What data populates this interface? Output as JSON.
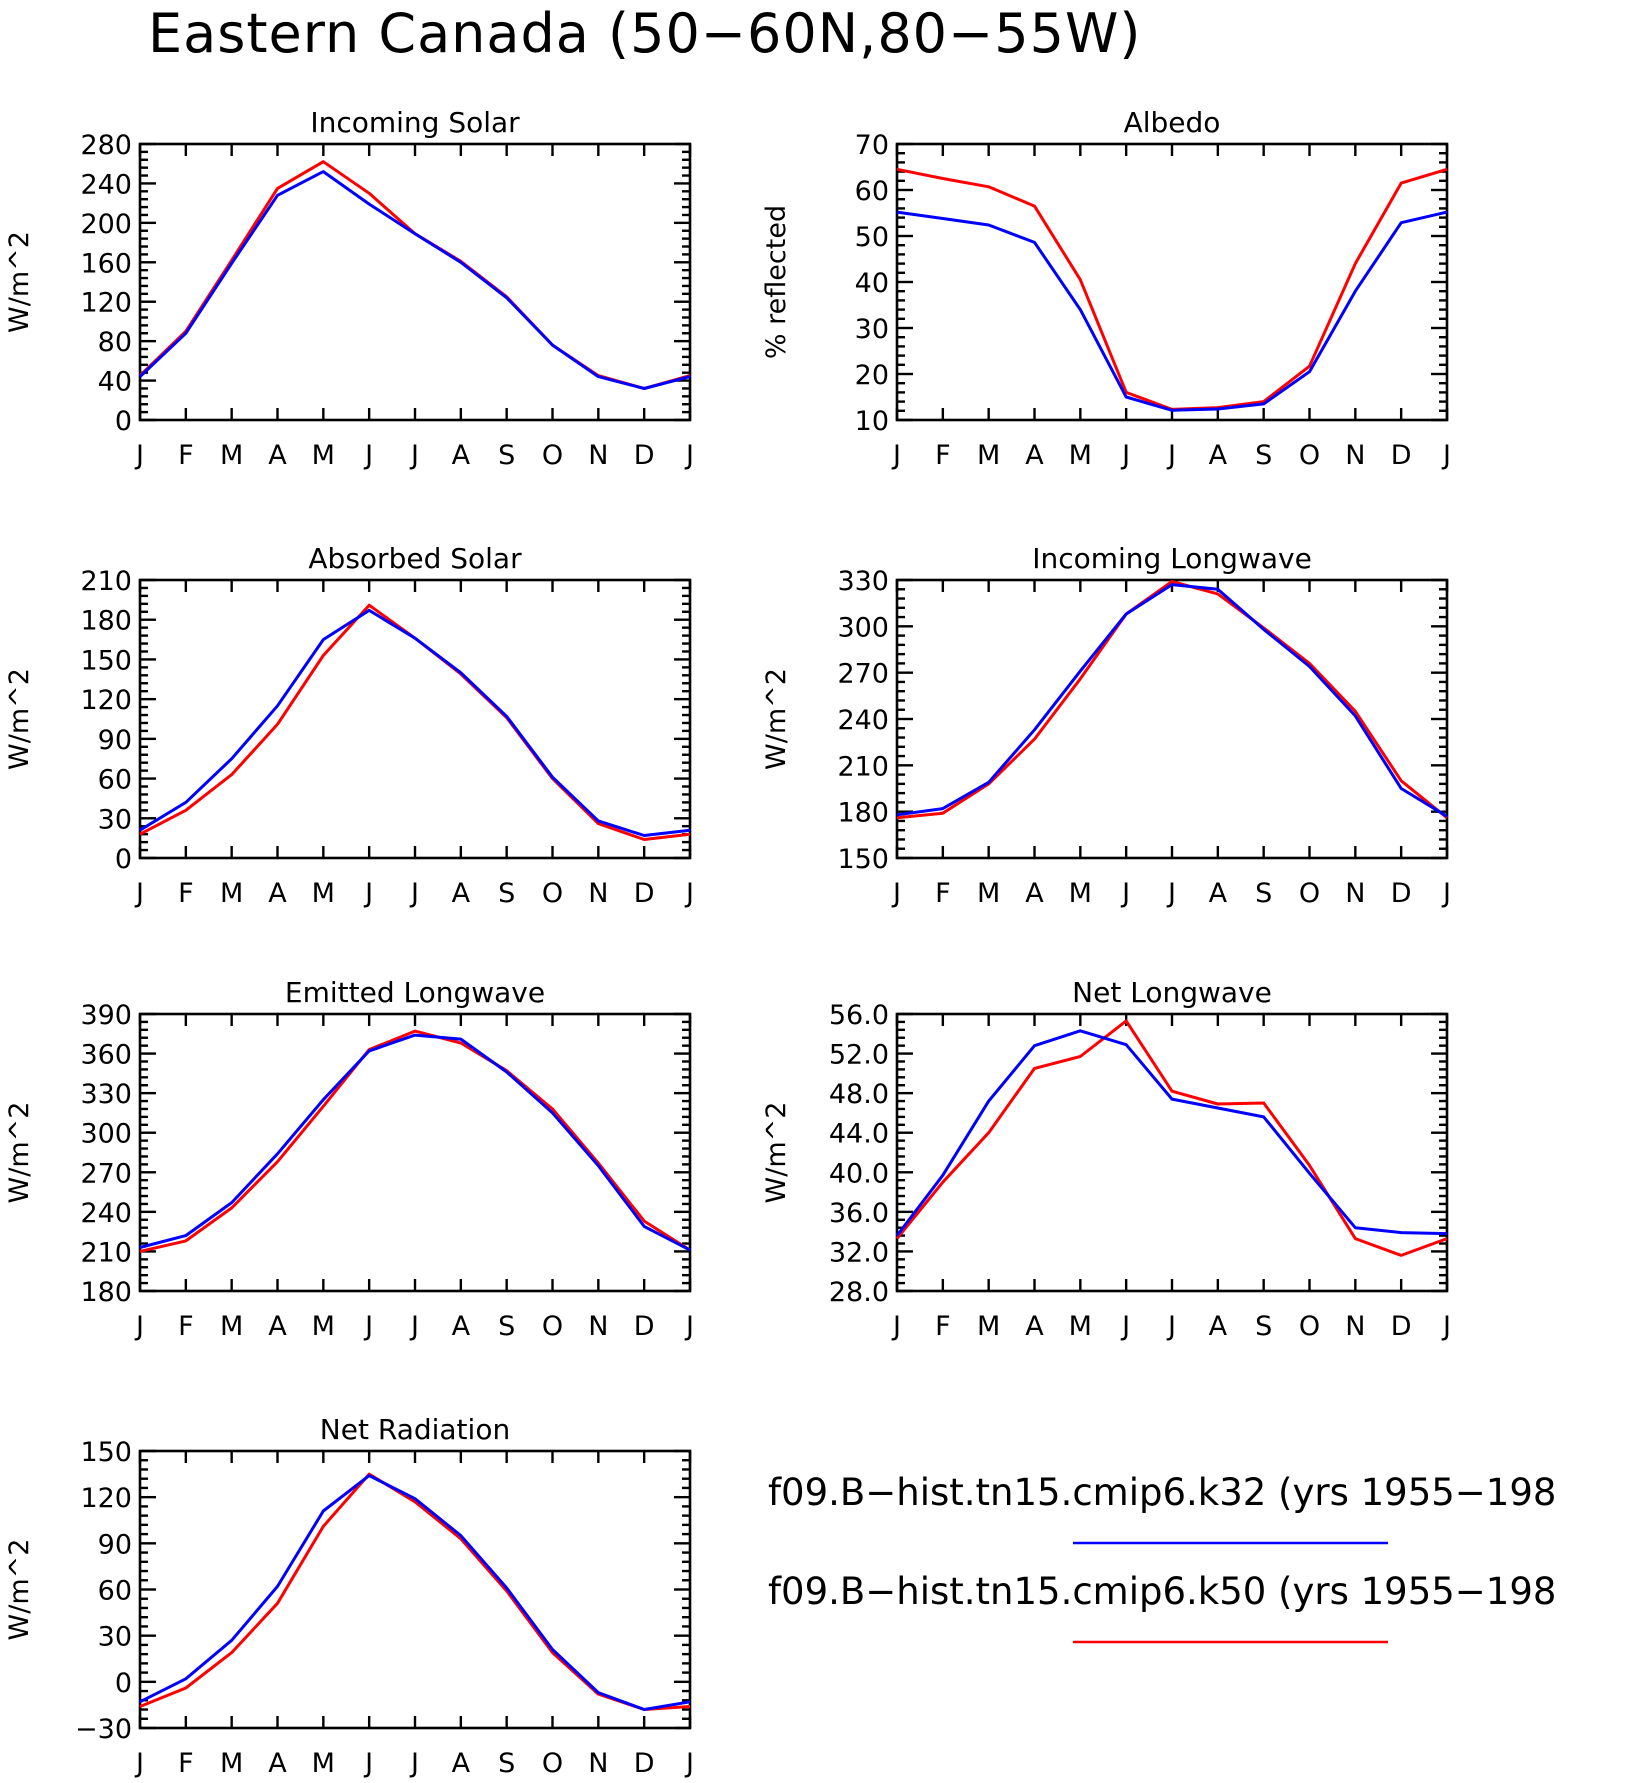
{
  "figure": {
    "title": "Eastern Canada (50−60N,80−55W)"
  },
  "legend": {
    "entries": [
      {
        "label": "f09.B−hist.tn15.cmip6.k32 (yrs 1955−198",
        "color": "#0000ff"
      },
      {
        "label": "f09.B−hist.tn15.cmip6.k50 (yrs 1955−198",
        "color": "#ff0000"
      }
    ]
  },
  "chart_data": [
    {
      "type": "line",
      "title": "Incoming Solar",
      "ylabel": "W/m^2",
      "xlabel": "",
      "categories": [
        "J",
        "F",
        "M",
        "A",
        "M",
        "J",
        "J",
        "A",
        "S",
        "O",
        "N",
        "D",
        "J"
      ],
      "ylim": [
        0,
        280
      ],
      "yticks": [
        0,
        40,
        80,
        120,
        160,
        200,
        240,
        280
      ],
      "ytick_labels": [
        "0",
        "40",
        "80",
        "120",
        "160",
        "200",
        "240",
        "280"
      ],
      "grid": false,
      "series": [
        {
          "color": "#ff0000",
          "values": [
            45,
            90,
            162,
            235,
            262,
            230,
            189,
            161,
            125,
            76,
            45,
            32,
            45
          ]
        },
        {
          "color": "#0000ff",
          "values": [
            44,
            88,
            159,
            228,
            252,
            219,
            189,
            160,
            124,
            76,
            44,
            32,
            44
          ]
        }
      ]
    },
    {
      "type": "line",
      "title": "Albedo",
      "ylabel": "% reflected",
      "xlabel": "",
      "categories": [
        "J",
        "F",
        "M",
        "A",
        "M",
        "J",
        "J",
        "A",
        "S",
        "O",
        "N",
        "D",
        "J"
      ],
      "ylim": [
        10,
        70
      ],
      "yticks": [
        10,
        20,
        30,
        40,
        50,
        60,
        70
      ],
      "ytick_labels": [
        "10",
        "20",
        "30",
        "40",
        "50",
        "60",
        "70"
      ],
      "grid": false,
      "series": [
        {
          "color": "#ff0000",
          "values": [
            64.5,
            62.5,
            60.7,
            56.5,
            40.5,
            16.0,
            12.3,
            12.7,
            14.0,
            21.7,
            44.0,
            61.5,
            64.5
          ]
        },
        {
          "color": "#0000ff",
          "values": [
            55.2,
            53.8,
            52.4,
            48.6,
            34.0,
            15.0,
            12.1,
            12.4,
            13.5,
            20.5,
            38.0,
            52.9,
            55.2
          ]
        }
      ]
    },
    {
      "type": "line",
      "title": "Absorbed Solar",
      "ylabel": "W/m^2",
      "xlabel": "",
      "categories": [
        "J",
        "F",
        "M",
        "A",
        "M",
        "J",
        "J",
        "A",
        "S",
        "O",
        "N",
        "D",
        "J"
      ],
      "ylim": [
        0,
        210
      ],
      "yticks": [
        0,
        30,
        60,
        90,
        120,
        150,
        180,
        210
      ],
      "ytick_labels": [
        "0",
        "30",
        "60",
        "90",
        "120",
        "150",
        "180",
        "210"
      ],
      "grid": false,
      "series": [
        {
          "color": "#ff0000",
          "values": [
            18,
            36,
            63,
            101,
            153,
            191,
            166,
            139,
            106,
            60,
            26,
            14,
            18
          ]
        },
        {
          "color": "#0000ff",
          "values": [
            21,
            42,
            75,
            115,
            165,
            187,
            166,
            140,
            107,
            61,
            28,
            17,
            21
          ]
        }
      ]
    },
    {
      "type": "line",
      "title": "Incoming Longwave",
      "ylabel": "W/m^2",
      "xlabel": "",
      "categories": [
        "J",
        "F",
        "M",
        "A",
        "M",
        "J",
        "J",
        "A",
        "S",
        "O",
        "N",
        "D",
        "J"
      ],
      "ylim": [
        150,
        330
      ],
      "yticks": [
        150,
        180,
        210,
        240,
        270,
        300,
        330
      ],
      "ytick_labels": [
        "150",
        "180",
        "210",
        "240",
        "270",
        "300",
        "330"
      ],
      "grid": false,
      "series": [
        {
          "color": "#ff0000",
          "values": [
            176,
            179,
            198,
            227,
            266,
            308,
            329,
            321,
            299,
            276,
            245,
            200,
            176
          ]
        },
        {
          "color": "#0000ff",
          "values": [
            178,
            182,
            199,
            233,
            271,
            308,
            327,
            324,
            298,
            274,
            242,
            195,
            177
          ]
        }
      ]
    },
    {
      "type": "line",
      "title": "Emitted Longwave",
      "ylabel": "W/m^2",
      "xlabel": "",
      "categories": [
        "J",
        "F",
        "M",
        "A",
        "M",
        "J",
        "J",
        "A",
        "S",
        "O",
        "N",
        "D",
        "J"
      ],
      "ylim": [
        180,
        390
      ],
      "yticks": [
        180,
        210,
        240,
        270,
        300,
        330,
        360,
        390
      ],
      "ytick_labels": [
        "180",
        "210",
        "240",
        "270",
        "300",
        "330",
        "360",
        "390"
      ],
      "grid": false,
      "series": [
        {
          "color": "#ff0000",
          "values": [
            210,
            218,
            243,
            278,
            320,
            363,
            377,
            368,
            347,
            318,
            277,
            233,
            211
          ]
        },
        {
          "color": "#0000ff",
          "values": [
            213,
            222,
            247,
            284,
            325,
            362,
            374,
            371,
            346,
            315,
            275,
            229,
            211
          ]
        }
      ]
    },
    {
      "type": "line",
      "title": "Net Longwave",
      "ylabel": "W/m^2",
      "xlabel": "",
      "categories": [
        "J",
        "F",
        "M",
        "A",
        "M",
        "J",
        "J",
        "A",
        "S",
        "O",
        "N",
        "D",
        "J"
      ],
      "ylim": [
        28.0,
        56.0
      ],
      "yticks": [
        28.0,
        32.0,
        36.0,
        40.0,
        44.0,
        48.0,
        52.0,
        56.0
      ],
      "ytick_labels": [
        "28.0",
        "32.0",
        "36.0",
        "40.0",
        "44.0",
        "48.0",
        "52.0",
        "56.0"
      ],
      "grid": false,
      "series": [
        {
          "color": "#ff0000",
          "values": [
            33.3,
            39.0,
            44.0,
            50.5,
            51.7,
            55.3,
            48.2,
            46.9,
            47.0,
            40.7,
            33.3,
            31.6,
            33.3
          ]
        },
        {
          "color": "#0000ff",
          "values": [
            33.6,
            39.7,
            47.2,
            52.8,
            54.3,
            52.9,
            47.4,
            46.5,
            45.6,
            39.9,
            34.4,
            33.9,
            33.8
          ]
        }
      ]
    },
    {
      "type": "line",
      "title": "Net Radiation",
      "ylabel": "W/m^2",
      "xlabel": "",
      "categories": [
        "J",
        "F",
        "M",
        "A",
        "M",
        "J",
        "J",
        "A",
        "S",
        "O",
        "N",
        "D",
        "J"
      ],
      "ylim": [
        -30,
        150
      ],
      "yticks": [
        -30,
        0,
        30,
        60,
        90,
        120,
        150
      ],
      "ytick_labels": [
        "−30",
        "0",
        "30",
        "60",
        "90",
        "120",
        "150"
      ],
      "grid": false,
      "series": [
        {
          "color": "#ff0000",
          "values": [
            -16,
            -4,
            19,
            51,
            101,
            135,
            117,
            93,
            59,
            19,
            -8,
            -18,
            -16
          ]
        },
        {
          "color": "#0000ff",
          "values": [
            -13,
            2,
            27,
            62,
            111,
            134,
            119,
            95,
            61,
            21,
            -7,
            -18,
            -13
          ]
        }
      ]
    }
  ]
}
